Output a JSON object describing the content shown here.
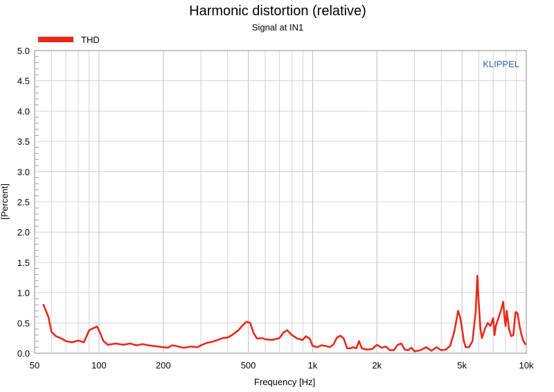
{
  "chart_data": {
    "type": "line",
    "title": "Harmonic distortion (relative)",
    "subtitle": "Signal at IN1",
    "xlabel": "Frequency [Hz]",
    "ylabel": "[Percent]",
    "xscale": "log",
    "xlim": [
      50,
      10000
    ],
    "ylim": [
      0,
      5
    ],
    "x_tick_values": [
      50,
      100,
      200,
      500,
      1000,
      2000,
      5000,
      10000
    ],
    "x_tick_labels": [
      "50",
      "100",
      "200",
      "500",
      "1k",
      "2k",
      "5k",
      "10k"
    ],
    "y_tick_values": [
      0,
      0.5,
      1,
      1.5,
      2,
      2.5,
      3,
      3.5,
      4,
      4.5,
      5
    ],
    "y_tick_labels": [
      "0.0",
      "0.5",
      "1.0",
      "1.5",
      "2.0",
      "2.5",
      "3.0",
      "3.5",
      "4.0",
      "4.5",
      "5.0"
    ],
    "grid": true,
    "legend_position": "top-left",
    "watermark": "KLIPPEL",
    "colors": {
      "line": "#e8281b",
      "watermark": "#3a5fa8",
      "grid": "#c8c8c8"
    },
    "series": [
      {
        "name": "THD",
        "x": [
          55,
          58,
          60,
          63,
          67,
          70,
          75,
          80,
          85,
          90,
          95,
          98,
          100,
          105,
          110,
          120,
          130,
          140,
          150,
          160,
          170,
          180,
          190,
          200,
          210,
          220,
          230,
          240,
          250,
          270,
          290,
          300,
          320,
          340,
          360,
          380,
          400,
          420,
          450,
          470,
          490,
          510,
          530,
          550,
          580,
          600,
          650,
          700,
          730,
          760,
          800,
          850,
          900,
          930,
          970,
          1000,
          1050,
          1100,
          1150,
          1200,
          1250,
          1300,
          1350,
          1400,
          1450,
          1500,
          1550,
          1600,
          1650,
          1700,
          1800,
          1900,
          2000,
          2100,
          2200,
          2300,
          2400,
          2500,
          2600,
          2700,
          2800,
          2900,
          3000,
          3200,
          3400,
          3600,
          3800,
          4000,
          4200,
          4400,
          4600,
          4800,
          4900,
          5000,
          5100,
          5200,
          5400,
          5600,
          5800,
          5900,
          6000,
          6100,
          6200,
          6400,
          6600,
          6800,
          7000,
          7100,
          7200,
          7400,
          7600,
          7800,
          7900,
          8000,
          8100,
          8300,
          8500,
          8700,
          8900,
          9100,
          9300,
          9500,
          9700,
          9900
        ],
        "values": [
          0.8,
          0.6,
          0.35,
          0.28,
          0.24,
          0.2,
          0.18,
          0.21,
          0.18,
          0.38,
          0.42,
          0.44,
          0.38,
          0.2,
          0.14,
          0.16,
          0.14,
          0.16,
          0.13,
          0.15,
          0.13,
          0.12,
          0.11,
          0.1,
          0.09,
          0.13,
          0.12,
          0.1,
          0.09,
          0.11,
          0.1,
          0.13,
          0.17,
          0.19,
          0.22,
          0.25,
          0.26,
          0.3,
          0.38,
          0.46,
          0.52,
          0.5,
          0.33,
          0.24,
          0.25,
          0.23,
          0.22,
          0.25,
          0.34,
          0.38,
          0.3,
          0.24,
          0.22,
          0.28,
          0.24,
          0.12,
          0.1,
          0.13,
          0.12,
          0.1,
          0.14,
          0.26,
          0.29,
          0.24,
          0.08,
          0.08,
          0.1,
          0.08,
          0.2,
          0.08,
          0.06,
          0.07,
          0.14,
          0.09,
          0.11,
          0.05,
          0.05,
          0.14,
          0.16,
          0.06,
          0.05,
          0.09,
          0.03,
          0.05,
          0.1,
          0.04,
          0.1,
          0.05,
          0.06,
          0.12,
          0.35,
          0.7,
          0.6,
          0.42,
          0.2,
          0.1,
          0.1,
          0.2,
          0.7,
          1.28,
          0.8,
          0.4,
          0.25,
          0.4,
          0.5,
          0.45,
          0.58,
          0.3,
          0.45,
          0.58,
          0.7,
          0.85,
          0.6,
          0.45,
          0.7,
          0.4,
          0.28,
          0.3,
          0.68,
          0.66,
          0.45,
          0.3,
          0.2,
          0.15
        ]
      }
    ]
  }
}
